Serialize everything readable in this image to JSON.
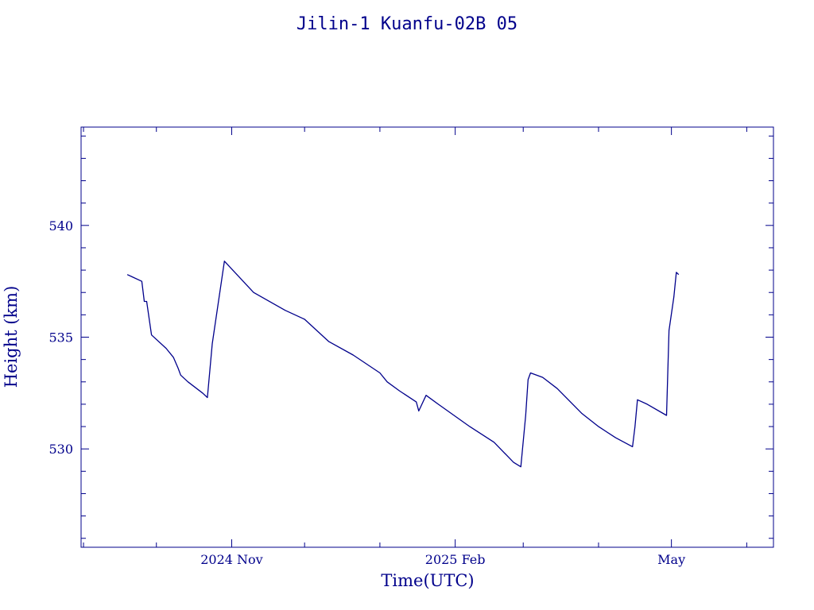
{
  "chart_data": {
    "type": "line",
    "title": "Jilin-1 Kuanfu-02B 05",
    "xlabel": "Time(UTC)",
    "ylabel": "Height (km)",
    "x_tick_labels": [
      "2024 Nov",
      "2025 Feb",
      "May"
    ],
    "y_tick_labels": [
      "530",
      "535",
      "540"
    ],
    "xlim": [
      "2024-08-31",
      "2025-06-12"
    ],
    "ylim": [
      525.6,
      544.4
    ],
    "grid": false,
    "colors": {
      "line": "#00008b",
      "text": "#00008b",
      "background": "#ffffff"
    },
    "series": [
      {
        "x": [
          "2024-09-19",
          "2024-09-21",
          "2024-09-25",
          "2024-09-26",
          "2024-09-27",
          "2024-09-29",
          "2024-10-05",
          "2024-10-08",
          "2024-10-10",
          "2024-10-11",
          "2024-10-14",
          "2024-10-20",
          "2024-10-22",
          "2024-10-24",
          "2024-10-29",
          "2024-11-10",
          "2024-11-23",
          "2024-12-01",
          "2024-12-11",
          "2024-12-21",
          "2025-01-01",
          "2025-01-04",
          "2025-01-09",
          "2025-01-16",
          "2025-01-17",
          "2025-01-20",
          "2025-01-25",
          "2025-02-07",
          "2025-02-17",
          "2025-02-25",
          "2025-02-28",
          "2025-03-02",
          "2025-03-03",
          "2025-03-04",
          "2025-03-09",
          "2025-03-15",
          "2025-03-25",
          "2025-04-01",
          "2025-04-08",
          "2025-04-15",
          "2025-04-16",
          "2025-04-17",
          "2025-04-21",
          "2025-04-29",
          "2025-04-30",
          "2025-05-02",
          "2025-05-03",
          "2025-05-04"
        ],
        "y": [
          537.8,
          537.7,
          537.5,
          536.6,
          536.6,
          535.1,
          534.5,
          534.1,
          533.6,
          533.3,
          533.0,
          532.5,
          532.3,
          534.7,
          538.4,
          537.0,
          536.2,
          535.8,
          534.8,
          534.2,
          533.4,
          533.0,
          532.6,
          532.1,
          531.7,
          532.4,
          532.0,
          531.0,
          530.3,
          529.4,
          529.2,
          531.5,
          533.1,
          533.4,
          533.2,
          532.7,
          531.6,
          531.0,
          530.5,
          530.1,
          531.0,
          532.2,
          532.0,
          531.5,
          535.3,
          536.8,
          537.9,
          537.8
        ]
      }
    ]
  }
}
